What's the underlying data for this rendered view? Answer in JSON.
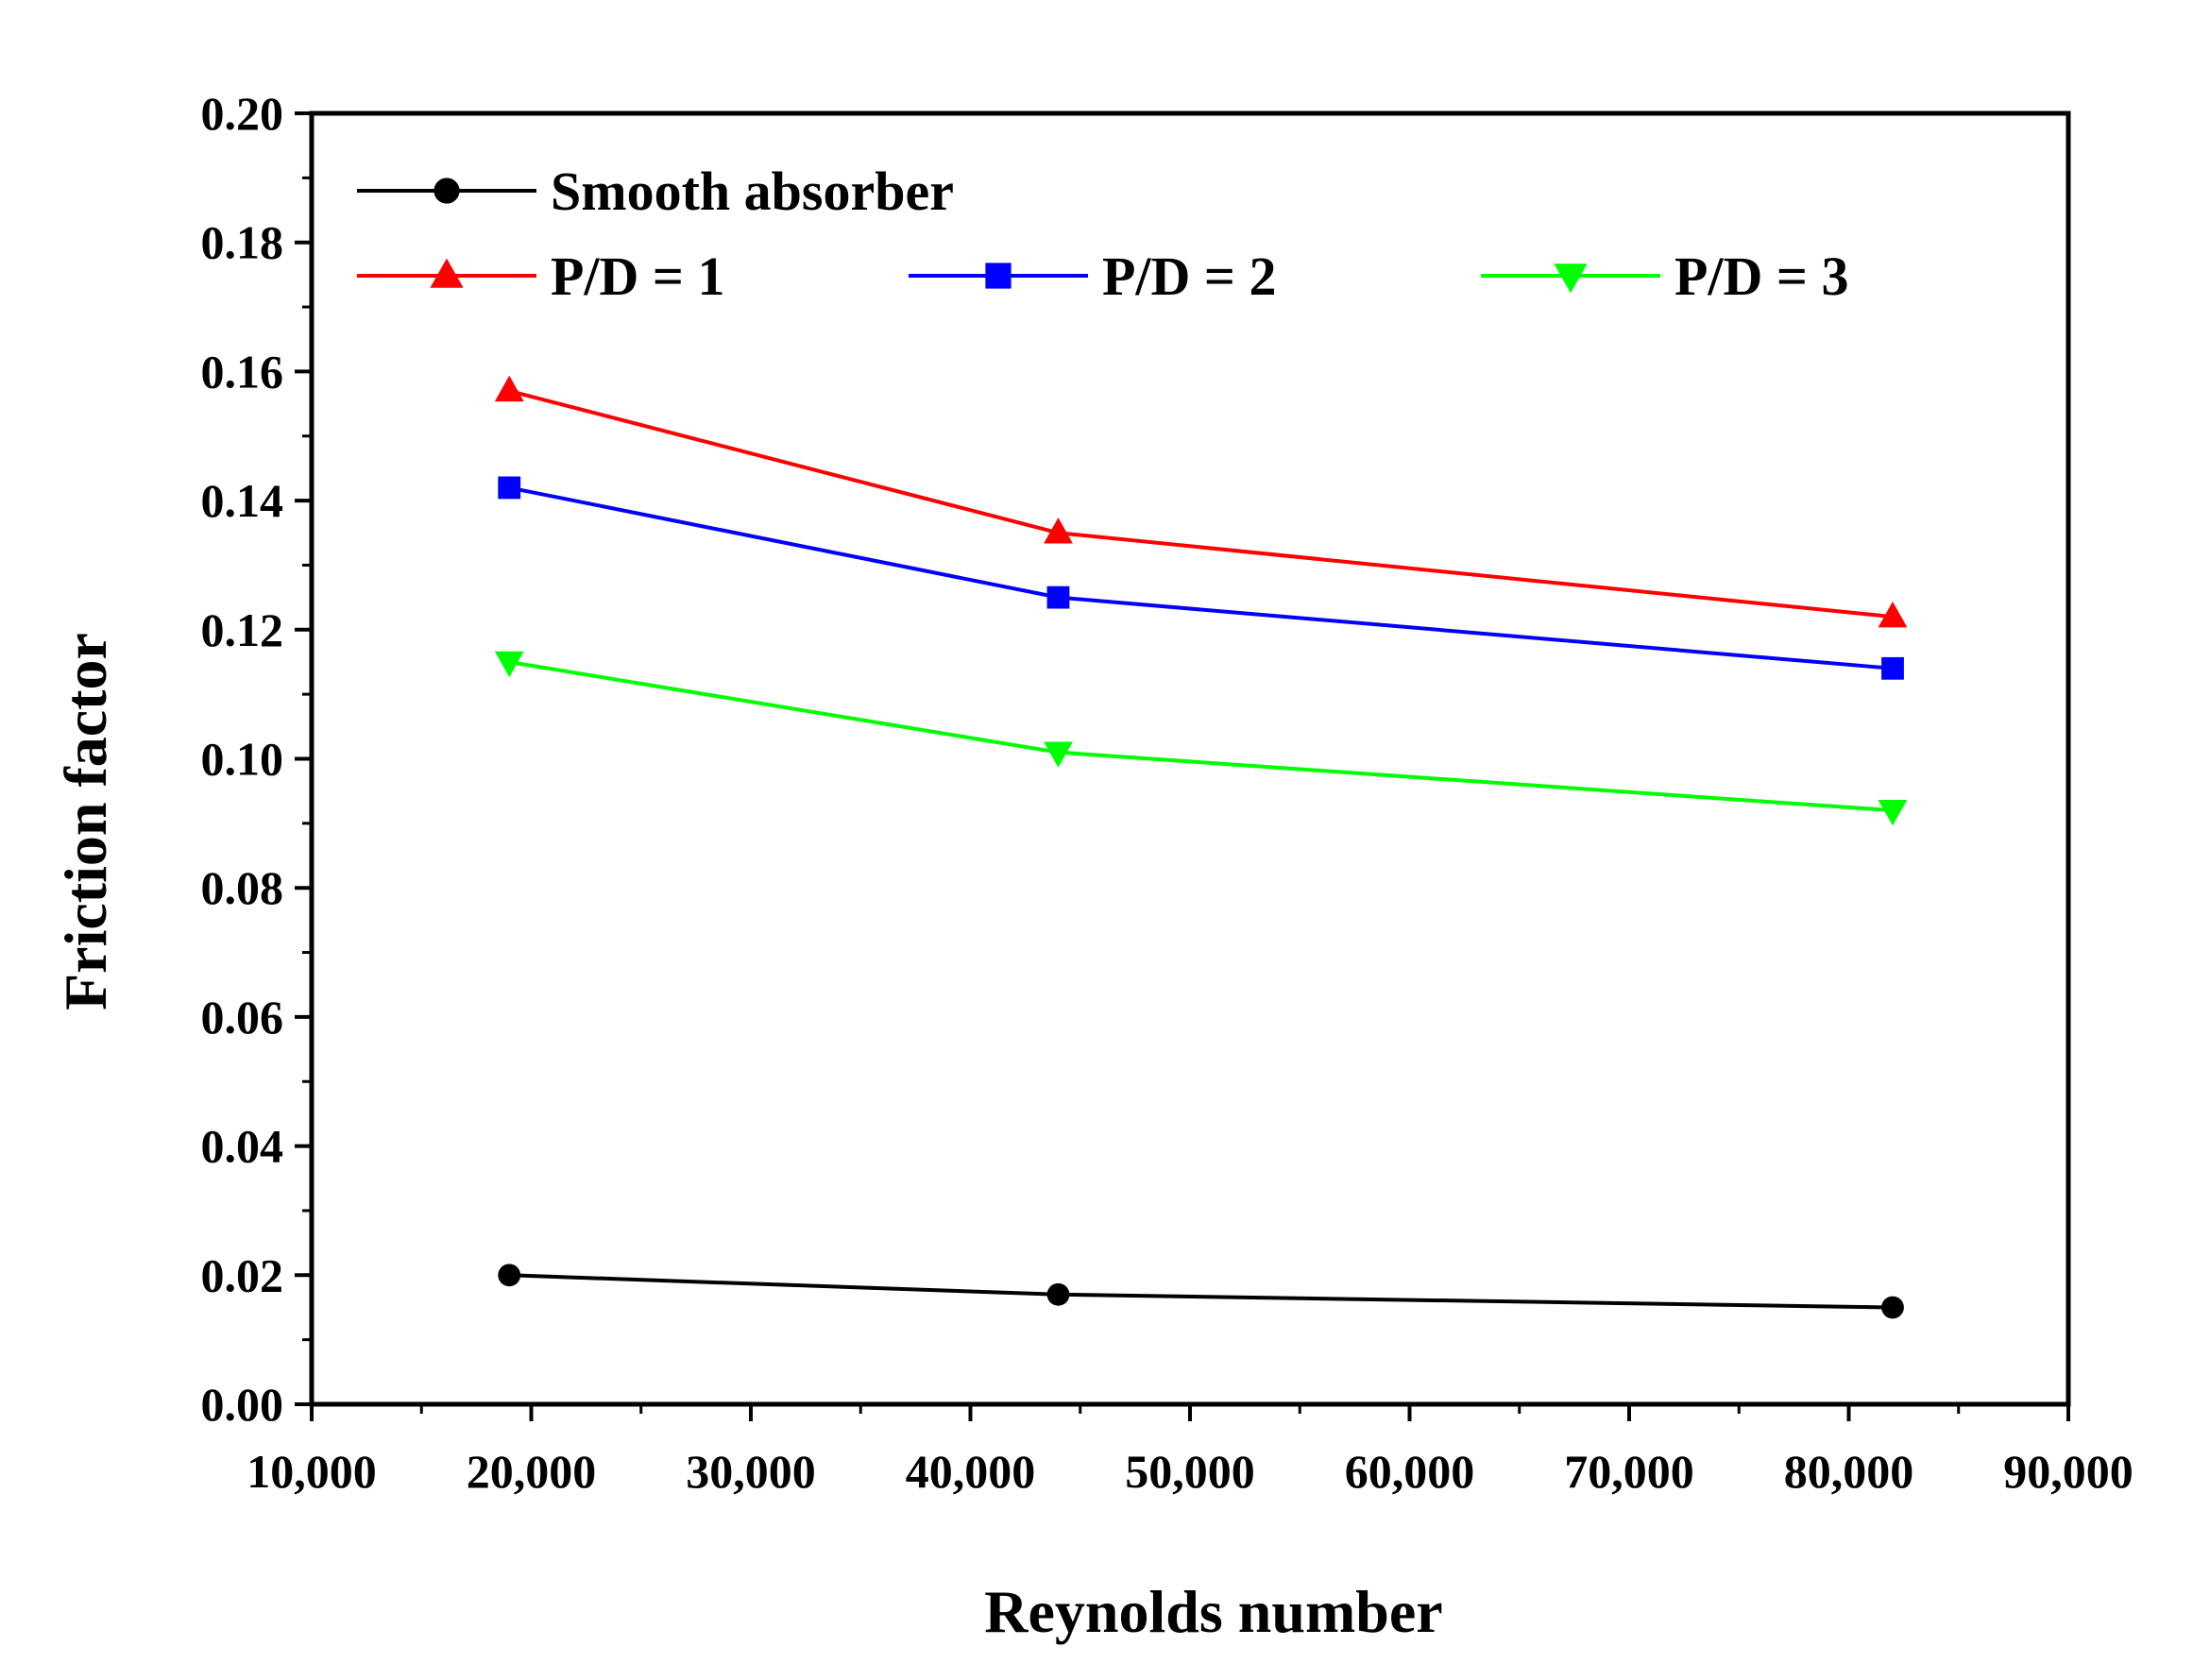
{
  "chart_data": {
    "type": "line",
    "title": "",
    "xlabel": "Reynolds number",
    "ylabel": "Friction factor",
    "xlim": [
      10000,
      90000
    ],
    "ylim": [
      0.0,
      0.2
    ],
    "x_ticks": [
      10000,
      20000,
      30000,
      40000,
      50000,
      60000,
      70000,
      80000,
      90000
    ],
    "x_tick_labels": [
      "10,000",
      "20,000",
      "30,000",
      "40,000",
      "50,000",
      "60,000",
      "70,000",
      "80,000",
      "90,000"
    ],
    "y_ticks": [
      0.0,
      0.02,
      0.04,
      0.06,
      0.08,
      0.1,
      0.12,
      0.14,
      0.16,
      0.18,
      0.2
    ],
    "y_tick_labels": [
      "0.00",
      "0.02",
      "0.04",
      "0.06",
      "0.08",
      "0.10",
      "0.12",
      "0.14",
      "0.16",
      "0.18",
      "0.20"
    ],
    "grid": false,
    "legend_position": "top-left",
    "x": [
      19000,
      44000,
      82000
    ],
    "series": [
      {
        "name": "Smooth absorber",
        "color": "#000000",
        "marker": "circle",
        "values": [
          0.02,
          0.017,
          0.015
        ]
      },
      {
        "name": "P/D = 1",
        "color": "#ff0000",
        "marker": "triangle-up",
        "values": [
          0.157,
          0.135,
          0.122
        ]
      },
      {
        "name": "P/D = 2",
        "color": "#0000ff",
        "marker": "square",
        "values": [
          0.142,
          0.125,
          0.114
        ]
      },
      {
        "name": "P/D = 3",
        "color": "#00ff00",
        "marker": "triangle-down",
        "values": [
          0.115,
          0.101,
          0.092
        ]
      }
    ]
  }
}
